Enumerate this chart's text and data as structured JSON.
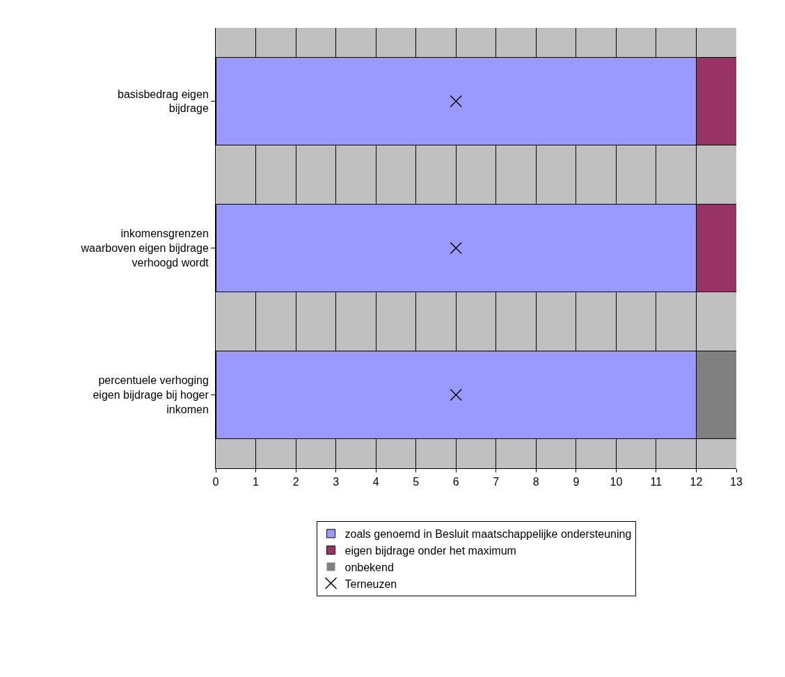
{
  "chart_data": {
    "type": "bar",
    "orientation": "horizontal",
    "stacked": true,
    "categories": [
      "basisbedrag eigen bijdrage",
      "inkomensgrenzen waarboven eigen bijdrage verhoogd wordt",
      "percentuele verhoging eigen bijdrage bij hoger inkomen"
    ],
    "series": [
      {
        "name": "zoals genoemd in Besluit maatschappelijke ondersteuning",
        "color": "#9999ff",
        "values": [
          12,
          12,
          12
        ]
      },
      {
        "name": "eigen bijdrage onder het maximum",
        "color": "#993366",
        "values": [
          1,
          1,
          0
        ]
      },
      {
        "name": "onbekend",
        "color": "#808080",
        "values": [
          0,
          0,
          1
        ]
      },
      {
        "name": "Terneuzen",
        "type": "scatter",
        "marker": "cross",
        "color": "#000000",
        "values": [
          6,
          6,
          6
        ]
      }
    ],
    "xlim": [
      0,
      13
    ],
    "xticks": [
      0,
      1,
      2,
      3,
      4,
      5,
      6,
      7,
      8,
      9,
      10,
      11,
      12,
      13
    ],
    "grid": "x",
    "legend": "bottom"
  }
}
